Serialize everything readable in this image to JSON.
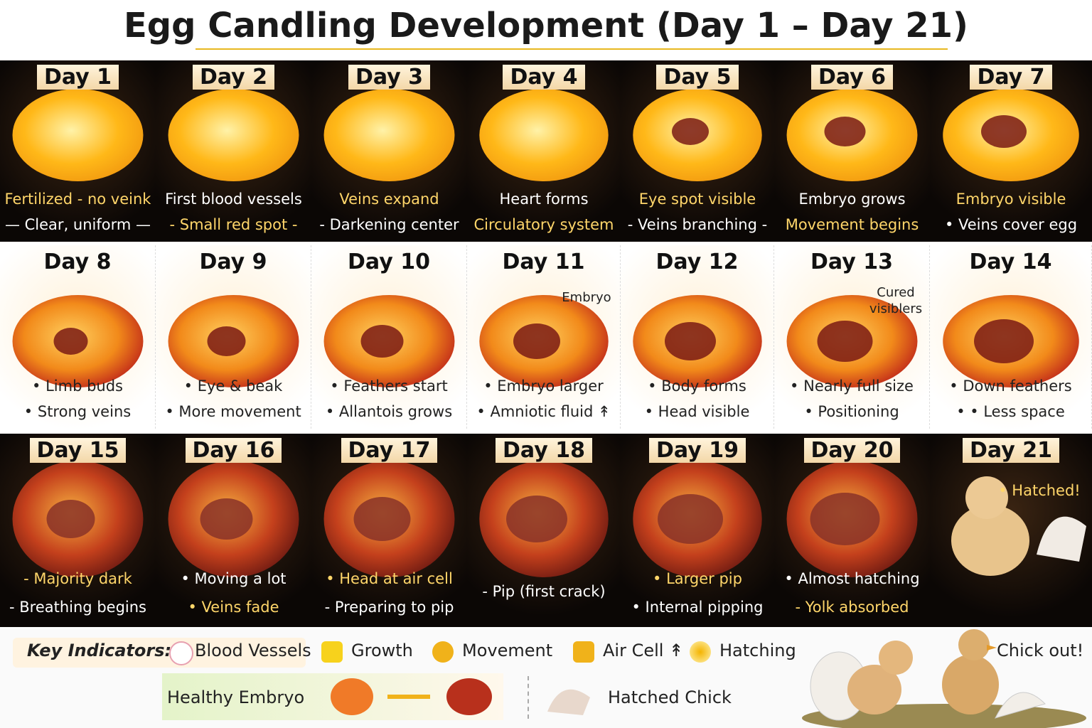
{
  "title": "Egg Candling Development (Day 1 – Day 21)",
  "rows": [
    {
      "days": [
        {
          "label": "Day 1",
          "lines": [
            "Fertilized - no veink",
            "— Clear, uniform —"
          ]
        },
        {
          "label": "Day 2",
          "lines": [
            "First blood vessels",
            "- Small red spot -"
          ]
        },
        {
          "label": "Day 3",
          "lines": [
            "Veins expand",
            "- Darkening center"
          ]
        },
        {
          "label": "Day 4",
          "lines": [
            "Heart forms",
            "Circulatory system"
          ]
        },
        {
          "label": "Day 5",
          "lines": [
            "Eye spot visible",
            "- Veins branching -"
          ]
        },
        {
          "label": "Day 6",
          "lines": [
            "Embryo grows",
            "Movement begins"
          ]
        },
        {
          "label": "Day 7",
          "lines": [
            "Embryo visible",
            "• Veins cover egg"
          ]
        }
      ]
    },
    {
      "days": [
        {
          "label": "Day 8",
          "lines": [
            "• Limb buds",
            "• Strong veins"
          ]
        },
        {
          "label": "Day 9",
          "lines": [
            "• Eye & beak",
            "• More movement"
          ]
        },
        {
          "label": "Day 10",
          "lines": [
            "• Feathers start",
            "• Allantois grows"
          ]
        },
        {
          "label": "Day 11",
          "lines": [
            "• Embryo larger",
            "• Amniotic fluid ↟"
          ],
          "note": "Embryo"
        },
        {
          "label": "Day 12",
          "lines": [
            "• Body forms",
            "• Head visible"
          ]
        },
        {
          "label": "Day 13",
          "lines": [
            "• Nearly full size",
            "• Positioning"
          ],
          "note": "Cured visiblers"
        },
        {
          "label": "Day 14",
          "lines": [
            "• Down feathers",
            "• • Less space"
          ]
        }
      ]
    },
    {
      "days": [
        {
          "label": "Day 15",
          "lines": [
            "- Majority dark",
            "- Breathing begins"
          ]
        },
        {
          "label": "Day 16",
          "lines": [
            "• Moving a lot",
            "• Veins fade"
          ]
        },
        {
          "label": "Day 17",
          "lines": [
            "• Head at air cell",
            "- Preparing to pip"
          ]
        },
        {
          "label": "Day 18",
          "lines": [
            "- Pip (first crack)"
          ]
        },
        {
          "label": "Day 19",
          "lines": [
            "• Larger pip",
            "• Internal pipping"
          ]
        },
        {
          "label": "Day 20",
          "lines": [
            "• Almost hatching",
            "- Yolk absorbed"
          ]
        },
        {
          "label": "Day 21",
          "lines": [
            "• Hatched!"
          ]
        }
      ]
    }
  ],
  "key": {
    "title": "Key Indicators:",
    "items": [
      "Blood Vessels",
      "Growth",
      "Movement",
      "Air Cell ↟",
      "Hatching"
    ],
    "chick_out": "Chick out!",
    "healthy": "Healthy Embryo",
    "hatched": "Hatched Chick"
  }
}
